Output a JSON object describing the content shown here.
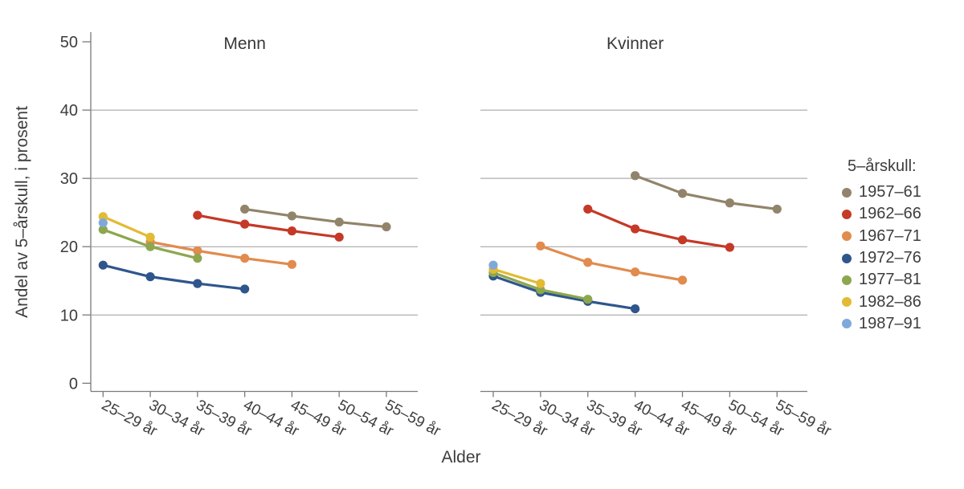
{
  "chart_data": {
    "type": "line",
    "facets": [
      "Menn",
      "Kvinner"
    ],
    "categories": [
      "25–29 år",
      "30–34 år",
      "35–39 år",
      "40–44 år",
      "45–49 år",
      "50–54 år",
      "55–59 år"
    ],
    "xlabel": "Alder",
    "ylabel": "Andel av 5–årskull, i prosent",
    "ylim": [
      0,
      50
    ],
    "yticks": [
      0,
      10,
      20,
      30,
      40,
      50
    ],
    "gridlines": [
      10,
      20,
      30,
      40
    ],
    "grid": "on",
    "legend_title": "5–årskull:",
    "legend_position": "right",
    "series": [
      {
        "name": "1957–61",
        "color": "#91846b",
        "values": {
          "Menn": [
            null,
            null,
            null,
            25.5,
            24.5,
            23.6,
            22.9
          ],
          "Kvinner": [
            null,
            null,
            null,
            30.4,
            27.8,
            26.4,
            25.5
          ]
        }
      },
      {
        "name": "1962–66",
        "color": "#c53927",
        "values": {
          "Menn": [
            null,
            null,
            24.6,
            23.3,
            22.3,
            21.4,
            null
          ],
          "Kvinner": [
            null,
            null,
            25.5,
            22.6,
            21.0,
            19.9,
            null
          ]
        }
      },
      {
        "name": "1967–71",
        "color": "#e18b4e",
        "values": {
          "Menn": [
            null,
            20.7,
            19.4,
            18.3,
            17.4,
            null,
            null
          ],
          "Kvinner": [
            null,
            20.1,
            17.7,
            16.3,
            15.1,
            null,
            null
          ]
        }
      },
      {
        "name": "1972–76",
        "color": "#2f568c",
        "values": {
          "Menn": [
            17.3,
            15.6,
            14.6,
            13.8,
            null,
            null,
            null
          ],
          "Kvinner": [
            15.7,
            13.3,
            12.0,
            10.9,
            null,
            null,
            null
          ]
        }
      },
      {
        "name": "1977–81",
        "color": "#8ca74d",
        "values": {
          "Menn": [
            22.5,
            20.0,
            18.3,
            null,
            null,
            null,
            null
          ],
          "Kvinner": [
            16.2,
            13.7,
            12.3,
            null,
            null,
            null,
            null
          ]
        }
      },
      {
        "name": "1982–86",
        "color": "#e3ba33",
        "values": {
          "Menn": [
            24.4,
            21.4,
            null,
            null,
            null,
            null,
            null
          ],
          "Kvinner": [
            16.7,
            14.6,
            null,
            null,
            null,
            null,
            null
          ]
        }
      },
      {
        "name": "1987–91",
        "color": "#80a9db",
        "values": {
          "Menn": [
            23.5,
            null,
            null,
            null,
            null,
            null,
            null
          ],
          "Kvinner": [
            17.3,
            null,
            null,
            null,
            null,
            null,
            null
          ]
        }
      }
    ]
  },
  "colors": {
    "background": "#ffffff",
    "grid": "#9a9a9a",
    "axis": "#7a7a7a",
    "text": "#3d3d3d"
  }
}
